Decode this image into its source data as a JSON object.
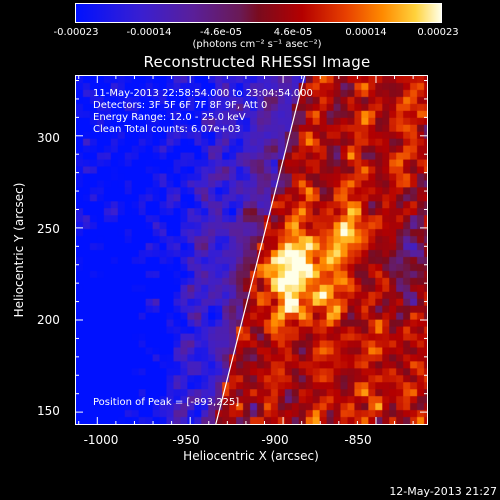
{
  "colorbar": {
    "ticks": [
      "-0.00023",
      "-0.00014",
      "-4.6e-05",
      "4.6e-05",
      "0.00014",
      "0.00023"
    ],
    "units": "(photons cm⁻² s⁻¹ asec⁻²)",
    "min": -0.00023,
    "max": 0.00023
  },
  "title": "Reconstructed RHESSI Image",
  "info": {
    "time": "11-May-2013 22:58:54.000 to 23:04:54.000",
    "detectors": "Detectors: 3F 5F 6F 7F 8F 9F, Att 0",
    "energy": "Energy Range: 12.0 - 25.0 keV",
    "clean": "Clean     Total counts: 6.07e+03"
  },
  "peak": "Position of Peak = [-893,225]",
  "axes": {
    "xlabel": "Heliocentric X (arcsec)",
    "ylabel": "Heliocentric Y (arcsec)",
    "xticks": [
      "-1000",
      "-950",
      "-900",
      "-850"
    ],
    "yticks": [
      "300",
      "250",
      "200",
      "150"
    ],
    "xrange": [
      -1012,
      -822
    ],
    "yrange": [
      143,
      333
    ]
  },
  "limb_line": {
    "x1": -937,
    "y1": 143,
    "x2": -889,
    "y2": 333
  },
  "colors": {
    "background": "#000000",
    "limb": "#ffffff"
  },
  "timestamp": "12-May-2013 21:27"
}
